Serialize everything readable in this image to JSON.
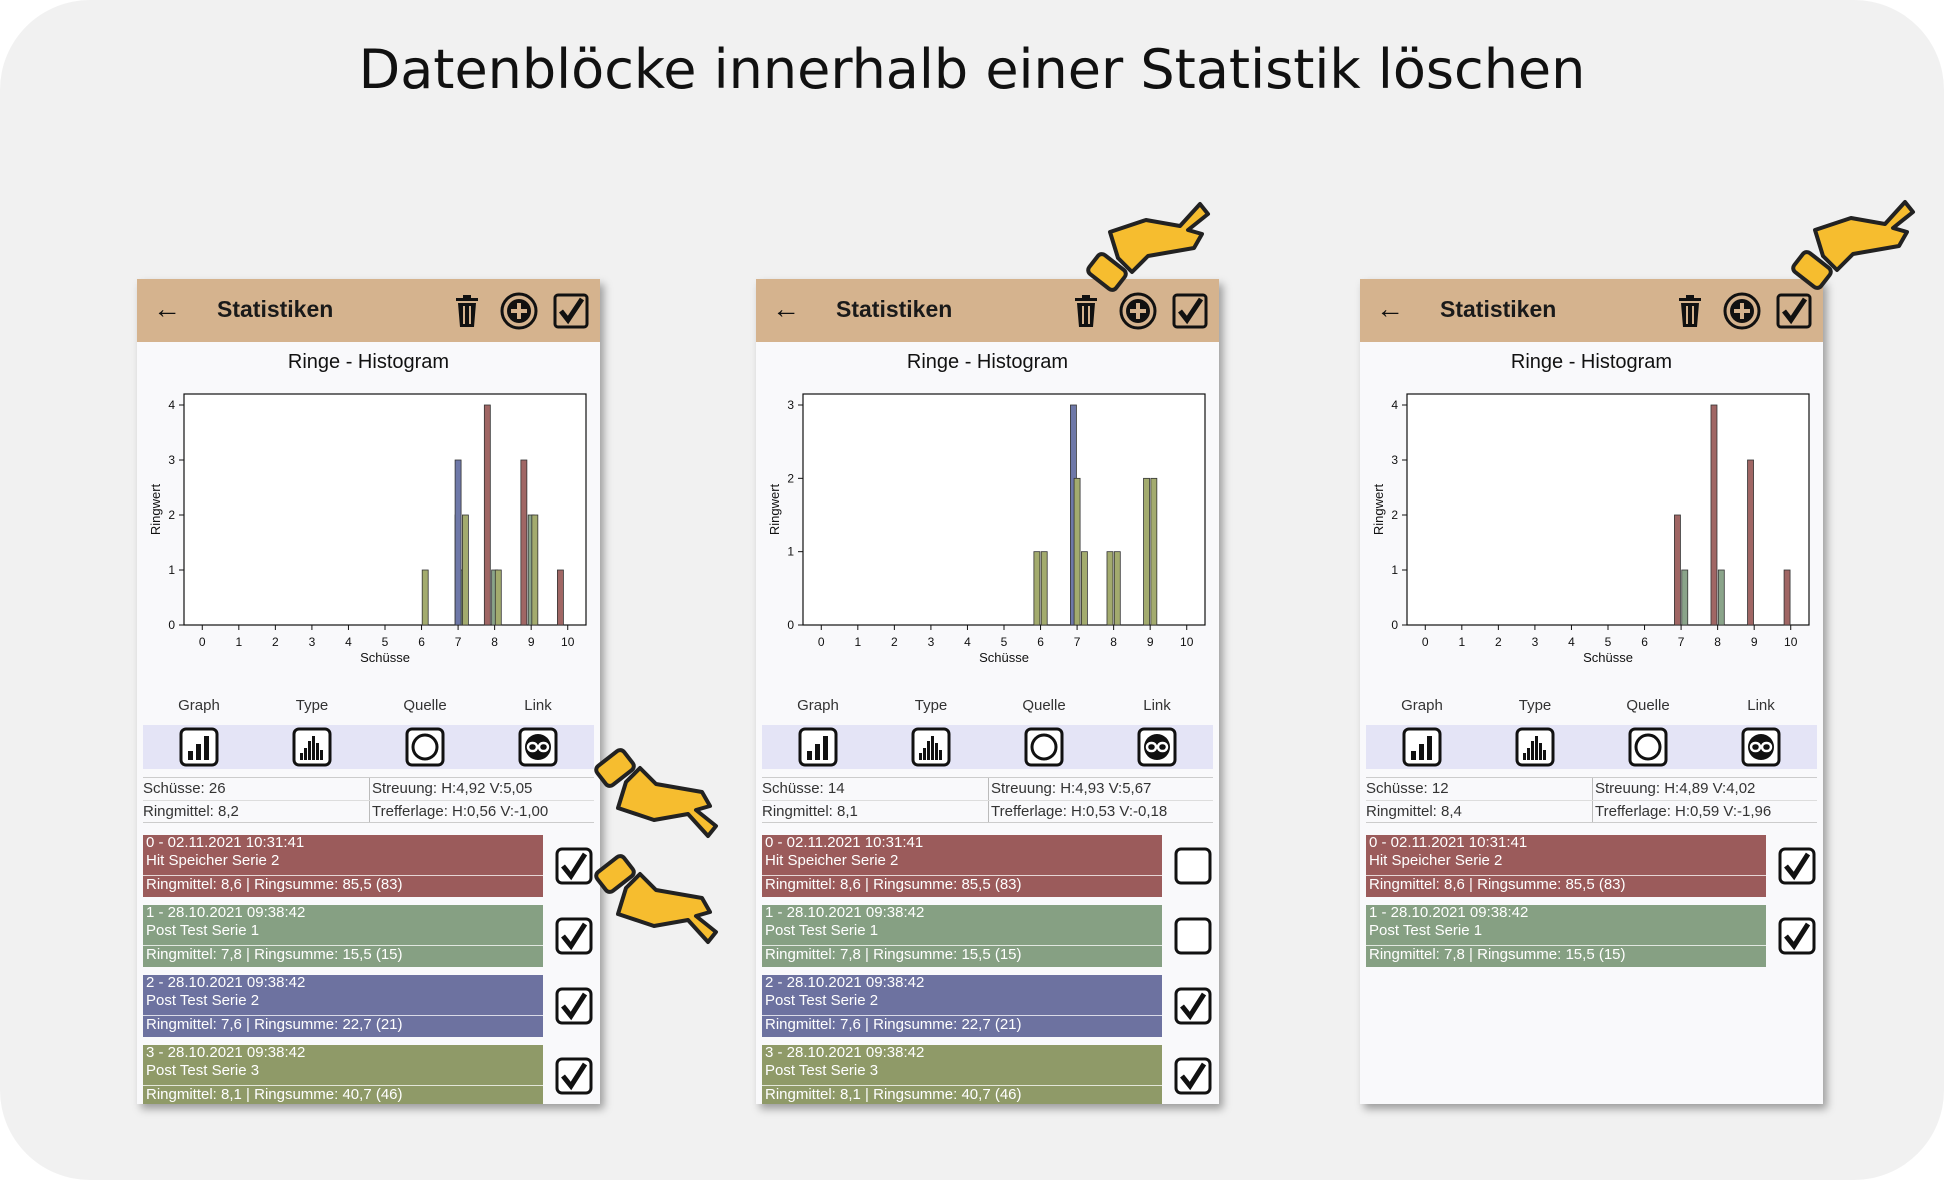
{
  "title": "Datenblöcke innerhalb einer Statistik löschen",
  "colors": {
    "toolbar": "#d5b38e",
    "item_red": "#9b5b5b",
    "item_green": "#86a083",
    "item_blue": "#6d72a0",
    "item_olive": "#8f9a68",
    "bar_red": "#a06664",
    "bar_green": "#8aa48a",
    "bar_blue": "#6e78a8",
    "bar_olive": "#a3ab6e"
  },
  "icons": {
    "back": "arrow-left-icon",
    "delete": "trash-icon",
    "add": "plus-circle-icon",
    "select": "checkbox-checked-icon",
    "graph": "bar-chart-icon",
    "type": "histogram-icon",
    "source": "circle-icon",
    "link": "link-icon",
    "pointer": "pointing-hand-icon"
  },
  "panels": [
    {
      "toolbar_title": "Statistiken",
      "chart_title": "Ringe - Histogram",
      "tabs": [
        "Graph",
        "Type",
        "Quelle",
        "Link"
      ],
      "stats": {
        "shots": "Schüsse: 26",
        "spread": "Streuung: H:4,92 V:5,05",
        "mean": "Ringmittel: 8,2",
        "hit_pos": "Trefferlage: H:0,56 V:-1,00"
      },
      "items": [
        {
          "line1": "0 - 02.11.2021 10:31:41",
          "line2": "Hit Speicher Serie 2",
          "line3": "Ringmittel:  8,6 | Ringsumme:  85,5 (83)",
          "color": "#9b5b5b",
          "checked": true
        },
        {
          "line1": "1 - 28.10.2021 09:38:42",
          "line2": "Post Test Serie 1",
          "line3": "Ringmittel:  7,8 | Ringsumme:  15,5 (15)",
          "color": "#86a083",
          "checked": true
        },
        {
          "line1": "2 - 28.10.2021 09:38:42",
          "line2": "Post Test Serie 2",
          "line3": "Ringmittel:  7,6 | Ringsumme:  22,7 (21)",
          "color": "#6d72a0",
          "checked": true
        },
        {
          "line1": "3 - 28.10.2021 09:38:42",
          "line2": "Post Test Serie 3",
          "line3": "Ringmittel:  8,1 | Ringsumme:  40,7 (46)",
          "color": "#8f9a68",
          "checked": true
        }
      ]
    },
    {
      "toolbar_title": "Statistiken",
      "chart_title": "Ringe - Histogram",
      "tabs": [
        "Graph",
        "Type",
        "Quelle",
        "Link"
      ],
      "stats": {
        "shots": "Schüsse: 14",
        "spread": "Streuung: H:4,93 V:5,67",
        "mean": "Ringmittel: 8,1",
        "hit_pos": "Trefferlage: H:0,53 V:-0,18"
      },
      "items": [
        {
          "line1": "0 - 02.11.2021 10:31:41",
          "line2": "Hit Speicher Serie 2",
          "line3": "Ringmittel:  8,6 | Ringsumme:  85,5 (83)",
          "color": "#9b5b5b",
          "checked": false
        },
        {
          "line1": "1 - 28.10.2021 09:38:42",
          "line2": "Post Test Serie 1",
          "line3": "Ringmittel:  7,8 | Ringsumme:  15,5 (15)",
          "color": "#86a083",
          "checked": false
        },
        {
          "line1": "2 - 28.10.2021 09:38:42",
          "line2": "Post Test Serie 2",
          "line3": "Ringmittel:  7,6 | Ringsumme:  22,7 (21)",
          "color": "#6d72a0",
          "checked": true
        },
        {
          "line1": "3 - 28.10.2021 09:38:42",
          "line2": "Post Test Serie 3",
          "line3": "Ringmittel:  8,1 | Ringsumme:  40,7 (46)",
          "color": "#8f9a68",
          "checked": true
        }
      ]
    },
    {
      "toolbar_title": "Statistiken",
      "chart_title": "Ringe - Histogram",
      "tabs": [
        "Graph",
        "Type",
        "Quelle",
        "Link"
      ],
      "stats": {
        "shots": "Schüsse: 12",
        "spread": "Streuung: H:4,89 V:4,02",
        "mean": "Ringmittel: 8,4",
        "hit_pos": "Trefferlage: H:0,59 V:-1,96"
      },
      "items": [
        {
          "line1": "0 - 02.11.2021 10:31:41",
          "line2": "Hit Speicher Serie 2",
          "line3": "Ringmittel:  8,6 | Ringsumme:  85,5 (83)",
          "color": "#9b5b5b",
          "checked": true
        },
        {
          "line1": "1 - 28.10.2021 09:38:42",
          "line2": "Post Test Serie 1",
          "line3": "Ringmittel:  7,8 | Ringsumme:  15,5 (15)",
          "color": "#86a083",
          "checked": true
        }
      ]
    }
  ],
  "chart_data": [
    {
      "type": "bar",
      "title": "Ringe - Histogram",
      "xlabel": "Schüsse",
      "ylabel": "Ringwert",
      "xlim": [
        -0.5,
        10.5
      ],
      "ylim": [
        0,
        4.2
      ],
      "xticks": [
        0,
        1,
        2,
        3,
        4,
        5,
        6,
        7,
        8,
        9,
        10
      ],
      "yticks": [
        0,
        1,
        2,
        3,
        4
      ],
      "series": [
        {
          "color": "#a06664",
          "points": [
            [
              7.0,
              2
            ],
            [
              7.8,
              4
            ],
            [
              8.8,
              3
            ],
            [
              9.8,
              1
            ]
          ]
        },
        {
          "color": "#8aa48a",
          "points": [
            [
              7.1,
              1
            ],
            [
              8.0,
              1
            ],
            [
              9.0,
              2
            ]
          ]
        },
        {
          "color": "#6e78a8",
          "points": [
            [
              7.0,
              3
            ]
          ]
        },
        {
          "color": "#a3ab6e",
          "points": [
            [
              6.1,
              1
            ],
            [
              7.2,
              2
            ],
            [
              8.1,
              1
            ],
            [
              9.1,
              2
            ]
          ]
        }
      ]
    },
    {
      "type": "bar",
      "title": "Ringe - Histogram",
      "xlabel": "Schüsse",
      "ylabel": "Ringwert",
      "xlim": [
        -0.5,
        10.5
      ],
      "ylim": [
        0,
        3.15
      ],
      "xticks": [
        0,
        1,
        2,
        3,
        4,
        5,
        6,
        7,
        8,
        9,
        10
      ],
      "yticks": [
        0,
        1,
        2,
        3
      ],
      "series": [
        {
          "color": "#6e78a8",
          "points": [
            [
              6.9,
              3
            ]
          ]
        },
        {
          "color": "#a3ab6e",
          "points": [
            [
              5.9,
              1
            ],
            [
              6.1,
              1
            ],
            [
              7.0,
              2
            ],
            [
              7.2,
              1
            ],
            [
              7.9,
              1
            ],
            [
              8.1,
              1
            ],
            [
              8.9,
              2
            ],
            [
              9.1,
              2
            ]
          ]
        }
      ]
    },
    {
      "type": "bar",
      "title": "Ringe - Histogram",
      "xlabel": "Schüsse",
      "ylabel": "Ringwert",
      "xlim": [
        -0.5,
        10.5
      ],
      "ylim": [
        0,
        4.2
      ],
      "xticks": [
        0,
        1,
        2,
        3,
        4,
        5,
        6,
        7,
        8,
        9,
        10
      ],
      "yticks": [
        0,
        1,
        2,
        3,
        4
      ],
      "series": [
        {
          "color": "#a06664",
          "points": [
            [
              6.9,
              2
            ],
            [
              7.9,
              4
            ],
            [
              8.9,
              3
            ],
            [
              9.9,
              1
            ]
          ]
        },
        {
          "color": "#8aa48a",
          "points": [
            [
              7.1,
              1
            ],
            [
              8.1,
              1
            ]
          ]
        }
      ]
    }
  ]
}
